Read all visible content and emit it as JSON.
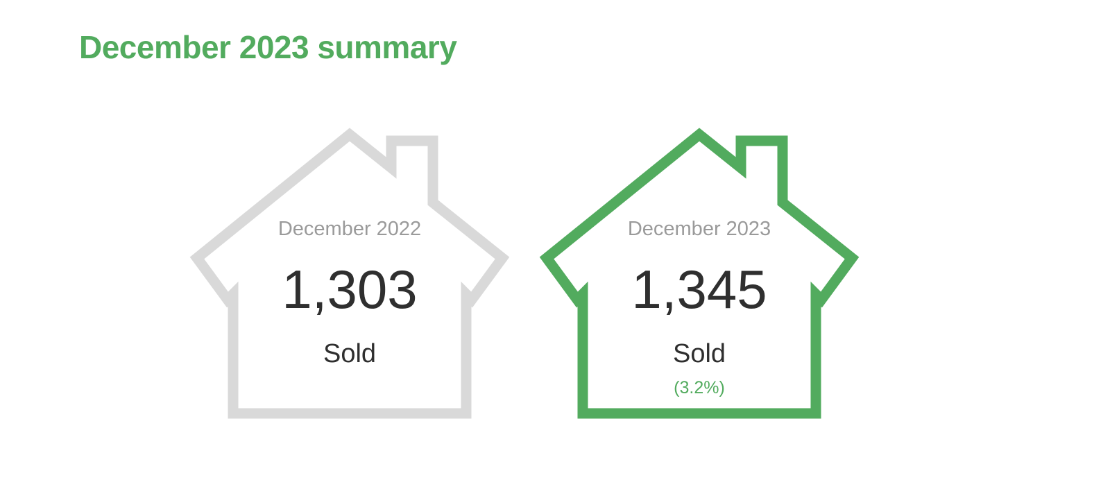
{
  "title": "December 2023 summary",
  "colors": {
    "accent": "#52ab5e",
    "inactive_outline": "#d9d9d9",
    "muted_text": "#9a9a9a",
    "value_text": "#2f2f2f"
  },
  "cards": [
    {
      "period": "December 2022",
      "value": "1,303",
      "unit": "Sold",
      "icon": "house-outline-icon"
    },
    {
      "period": "December 2023",
      "value": "1,345",
      "unit": "Sold",
      "change": "(3.2%)",
      "icon": "house-outline-icon"
    }
  ]
}
